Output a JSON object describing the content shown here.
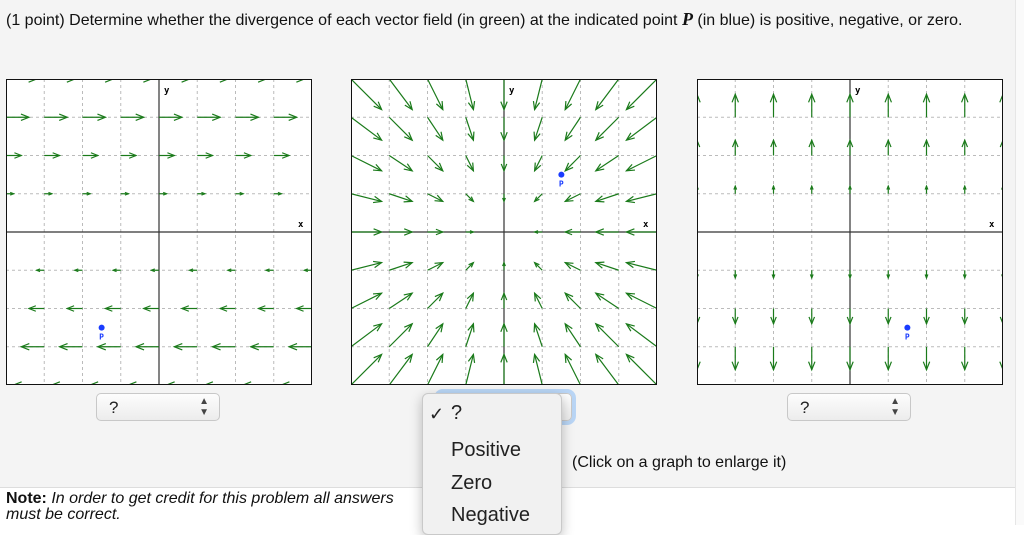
{
  "question": {
    "points": "(1 point)",
    "text_before": " Determine whether the divergence of each vector field (in green) at the indicated point ",
    "point_symbol": "P",
    "text_after": " (in blue) is positive, negative, or zero."
  },
  "colors": {
    "vector": "#1a7a1a",
    "point": "#1a3cff",
    "grid": "#bbbbbb",
    "axis": "#333333"
  },
  "graphs": [
    {
      "x_label": "x",
      "y_label": "y",
      "point_label": "P",
      "point": [
        -1.5,
        -2.5
      ],
      "field": "F(x,y) = (y, 0)",
      "xlim": [
        -4,
        4
      ],
      "ylim": [
        -4,
        4
      ],
      "selected": "?"
    },
    {
      "x_label": "x",
      "y_label": "y",
      "point_label": "P",
      "point": [
        1.5,
        1.5
      ],
      "field": "F(x,y) = (-x, -y)",
      "xlim": [
        -4,
        4
      ],
      "ylim": [
        -4,
        4
      ],
      "selected": "?"
    },
    {
      "x_label": "x",
      "y_label": "y",
      "point_label": "P",
      "point": [
        1.5,
        -2.5
      ],
      "field": "F(x,y) = (0, y)",
      "xlim": [
        -4,
        4
      ],
      "ylim": [
        -4,
        4
      ],
      "selected": "?"
    }
  ],
  "dropdown_menu": {
    "options": [
      "?",
      "Positive",
      "Zero",
      "Negative"
    ],
    "checked": "?",
    "check_mark": "✓"
  },
  "caption": "(Click on a graph to enlarge it)",
  "note": {
    "label": "Note:",
    "text": " In order to get credit for this problem all answers must be correct."
  }
}
